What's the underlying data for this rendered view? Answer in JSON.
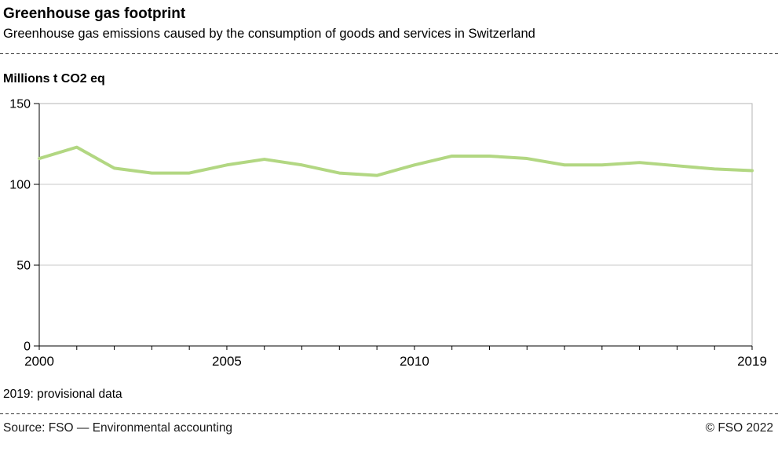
{
  "header": {
    "title": "Greenhouse gas footprint",
    "subtitle": "Greenhouse gas emissions caused by the consumption of goods and services in Switzerland"
  },
  "chart": {
    "unit_label": "Millions t CO2 eq",
    "footnote": "2019: provisional data"
  },
  "footer": {
    "source": "Source: FSO — Environmental accounting",
    "copyright": "© FSO 2022"
  },
  "colors": {
    "line": "#b2d782",
    "grid": "#c8c8c8",
    "frame": "#b4b4b4",
    "axis": "#000000",
    "text": "#000000"
  },
  "chart_data": {
    "type": "line",
    "title": "Greenhouse gas footprint",
    "ylabel": "Millions t CO2 eq",
    "xlabel": "",
    "ylim": [
      0,
      150
    ],
    "yticks": [
      0,
      50,
      100,
      150
    ],
    "xticks": [
      2000,
      2005,
      2010,
      2019
    ],
    "grid": true,
    "legend": "none",
    "x": [
      2000,
      2001,
      2002,
      2003,
      2004,
      2005,
      2006,
      2007,
      2008,
      2009,
      2010,
      2011,
      2012,
      2013,
      2014,
      2015,
      2016,
      2017,
      2018,
      2019
    ],
    "series": [
      {
        "name": "Greenhouse gas footprint",
        "values": [
          116,
          123,
          110,
          107,
          107,
          112,
          115.5,
          112,
          107,
          105.5,
          112,
          117.5,
          117.5,
          116,
          112,
          112,
          113.5,
          111.5,
          109.5,
          108.5
        ]
      }
    ]
  }
}
